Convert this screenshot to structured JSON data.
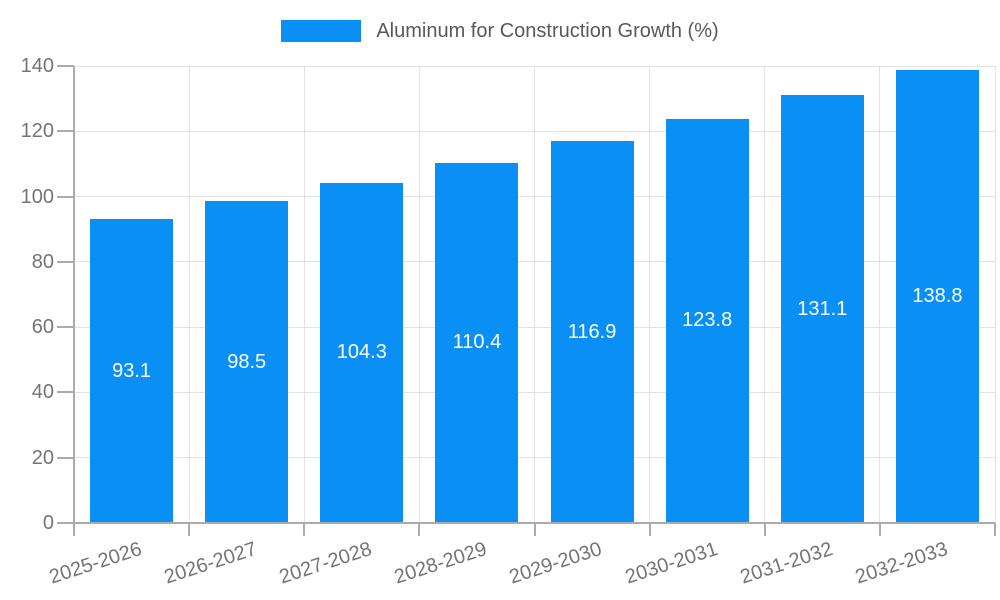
{
  "legend": {
    "label": "Aluminum for Construction Growth (%)"
  },
  "chart_data": {
    "type": "bar",
    "title": "",
    "xlabel": "",
    "ylabel": "",
    "categories": [
      "2025-2026",
      "2026-2027",
      "2027-2028",
      "2028-2029",
      "2029-2030",
      "2030-2031",
      "2031-2032",
      "2032-2033"
    ],
    "series": [
      {
        "name": "Aluminum for Construction Growth (%)",
        "values": [
          93.1,
          98.5,
          104.3,
          110.4,
          116.9,
          123.8,
          131.1,
          138.8
        ]
      }
    ],
    "value_labels": [
      "93.1",
      "98.5",
      "104.3",
      "110.4",
      "116.9",
      "123.8",
      "131.1",
      "138.8"
    ],
    "ylim": [
      0,
      140
    ],
    "yticks": [
      0,
      20,
      40,
      60,
      80,
      100,
      120,
      140
    ],
    "grid": true,
    "legend_position": "top-center",
    "colors": {
      "bar": "#0a8ff5",
      "grid": "#e3e3e3",
      "axis": "#ababab",
      "tick_label": "#757575",
      "legend_text": "#595959",
      "value_label": "#ffffff",
      "background": "#ffffff"
    }
  }
}
